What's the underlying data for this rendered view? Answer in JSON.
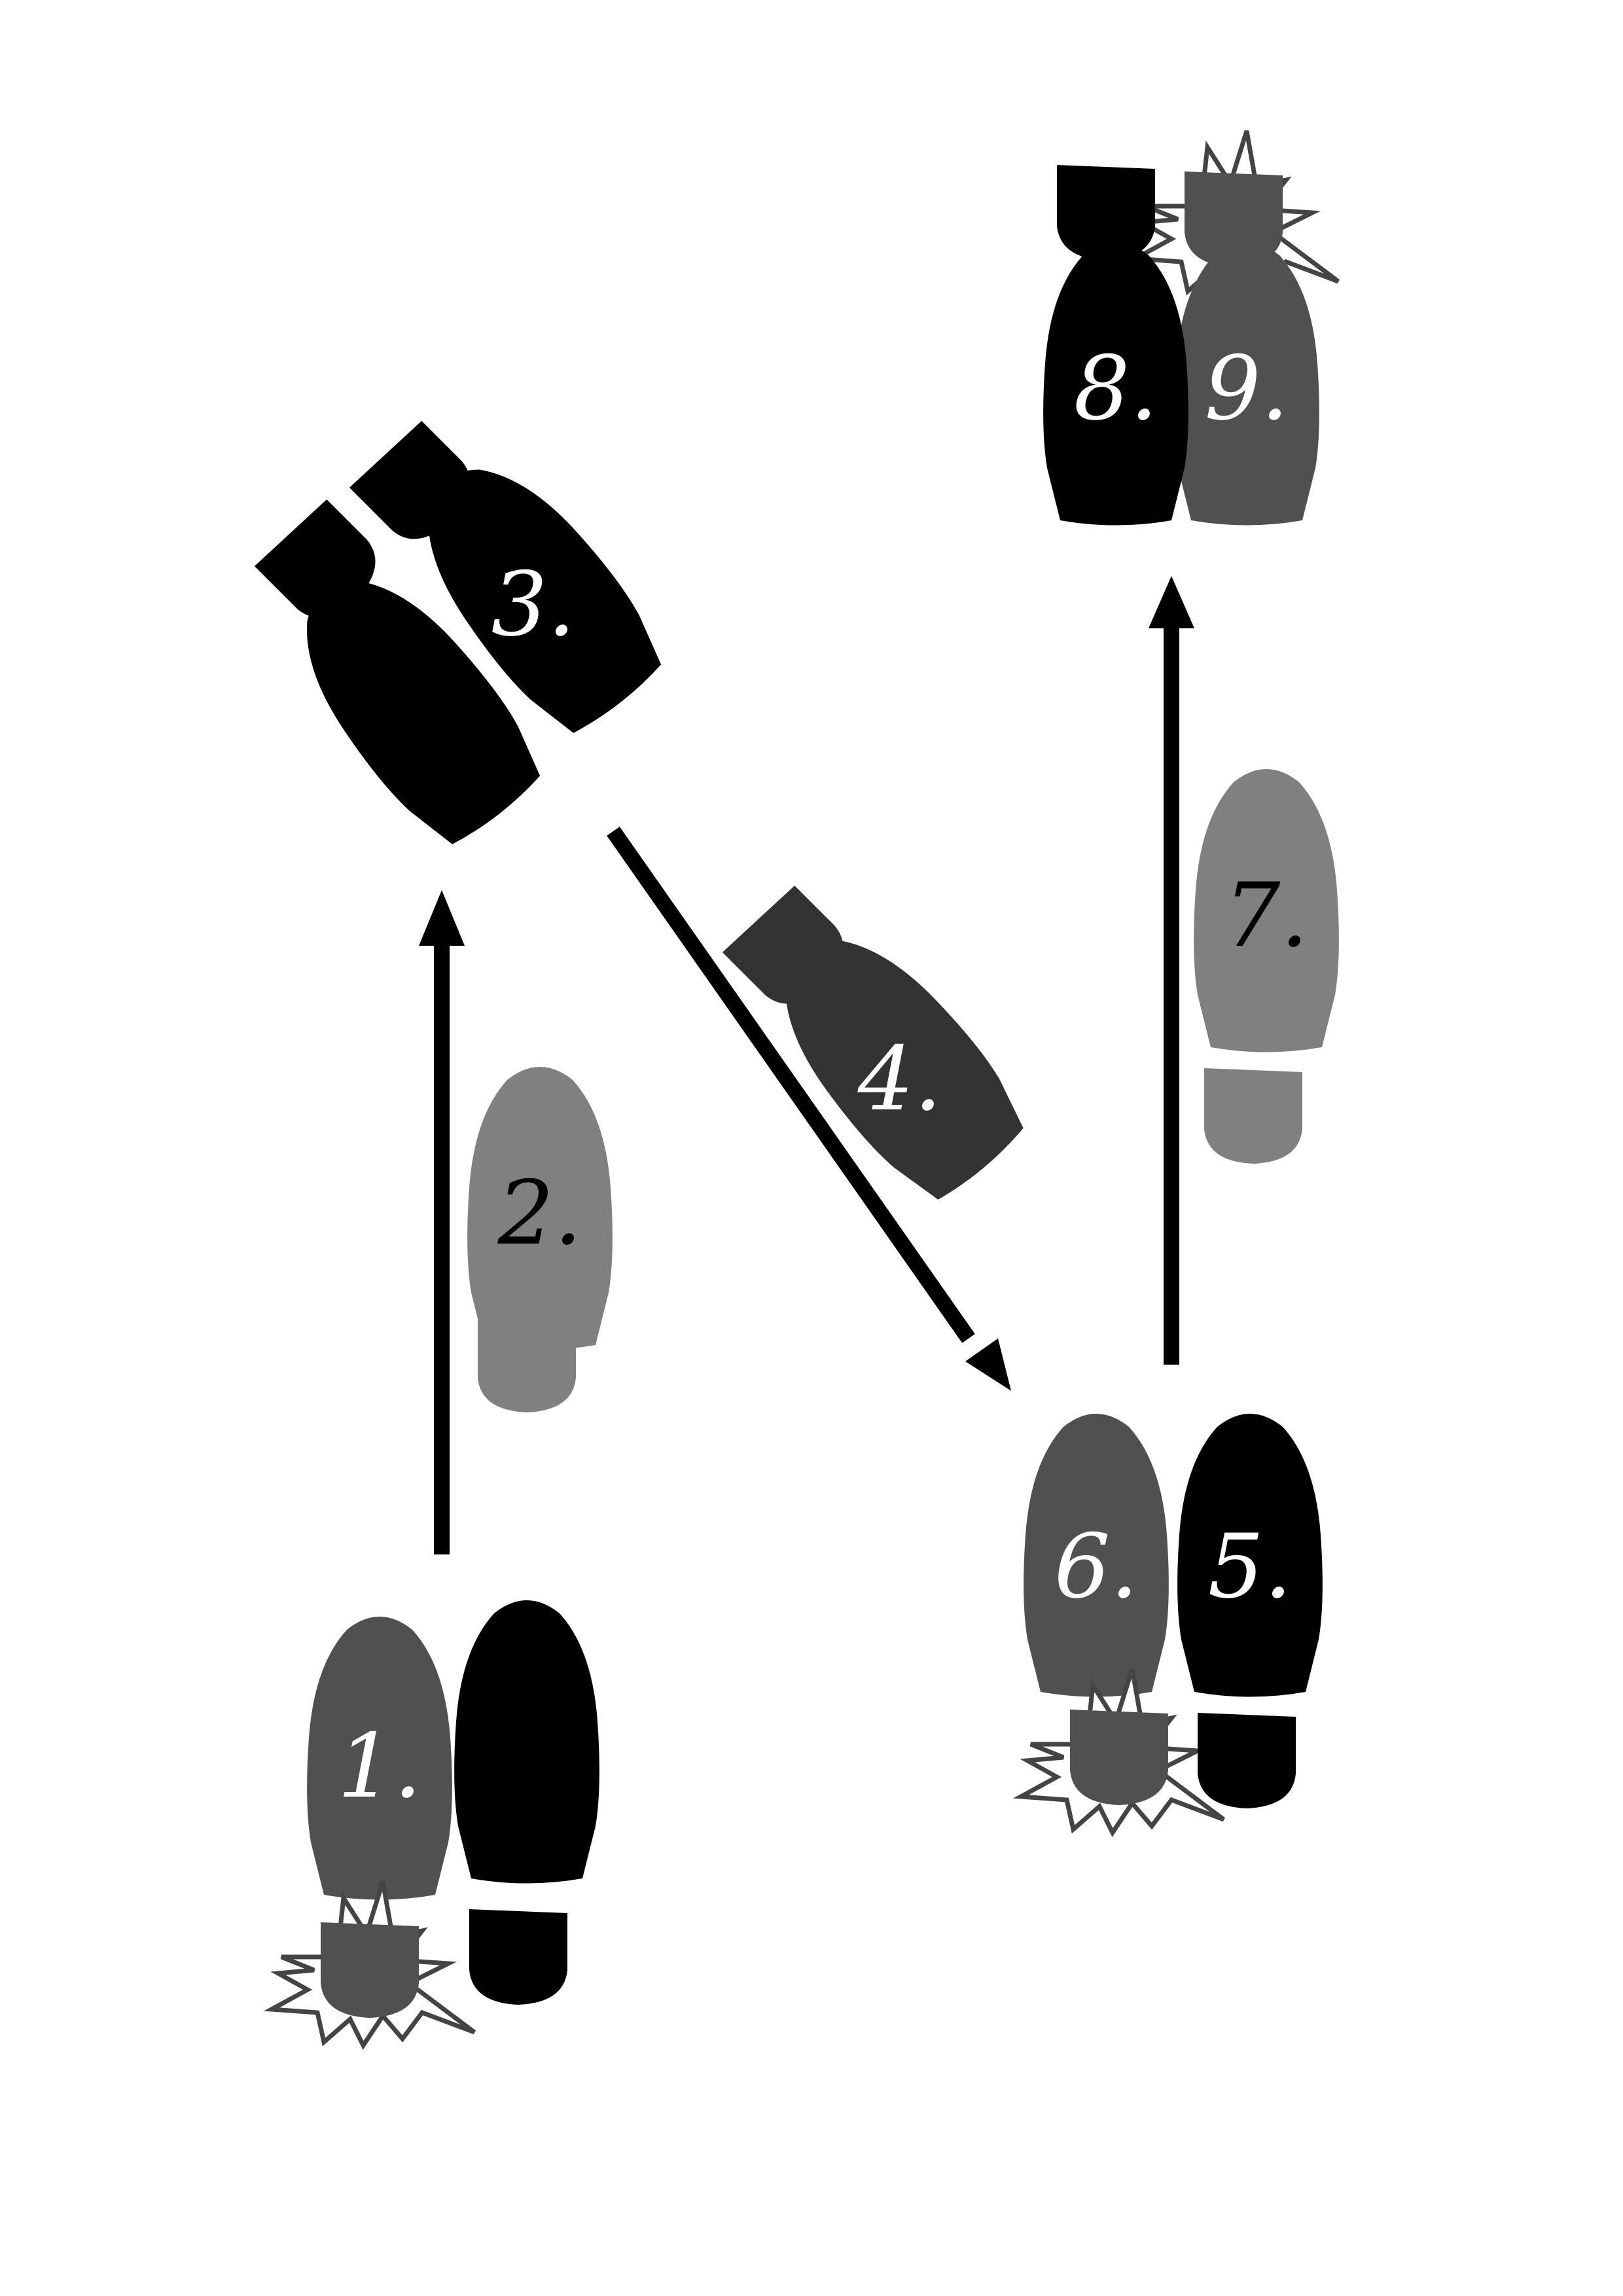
{
  "colors": {
    "background": "#ffffff",
    "black_foot": "#000000",
    "dark_grey_foot": "#505050",
    "mid_grey_foot": "#333333",
    "light_grey_foot": "#808080",
    "white_label": "#ffffff",
    "black_label": "#000000",
    "stamp_outline": "#444444",
    "arrow": "#000000"
  },
  "steps": [
    {
      "number": "1.",
      "foot": "left",
      "tone": "dark_grey",
      "label_color": "white",
      "stamp": true
    },
    {
      "number": "2.",
      "foot": "right",
      "tone": "light_grey",
      "label_color": "black",
      "stamp": false
    },
    {
      "number": "3.",
      "foot": "right",
      "tone": "black",
      "label_color": "white",
      "stamp": false
    },
    {
      "number": "4.",
      "foot": "right",
      "tone": "mid_grey",
      "label_color": "white",
      "stamp": false
    },
    {
      "number": "5.",
      "foot": "right",
      "tone": "black",
      "label_color": "white",
      "stamp": false
    },
    {
      "number": "6.",
      "foot": "left",
      "tone": "dark_grey",
      "label_color": "white",
      "stamp": true
    },
    {
      "number": "7.",
      "foot": "right",
      "tone": "light_grey",
      "label_color": "black",
      "stamp": false
    },
    {
      "number": "8.",
      "foot": "left",
      "tone": "black",
      "label_color": "white",
      "stamp": false
    },
    {
      "number": "9.",
      "foot": "right",
      "tone": "dark_grey",
      "label_color": "white",
      "stamp": true
    }
  ],
  "icons": {
    "footprint": "shoe-print-icon",
    "stamp": "stomp-burst-icon",
    "arrow": "direction-arrow-icon"
  }
}
